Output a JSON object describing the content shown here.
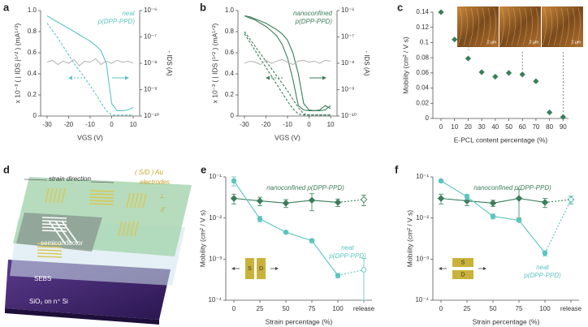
{
  "chart_data": [
    {
      "type": "line",
      "panel": "a",
      "x": [
        -30,
        -27.5,
        -25,
        -22.5,
        -20,
        -17.5,
        -15,
        -12.5,
        -10,
        -7.5,
        -5,
        -2.5,
        0,
        2.5,
        5,
        7.5,
        10
      ],
      "xlim": [
        -33,
        13
      ],
      "xticks": [
        -30,
        -20,
        -10,
        0,
        10
      ],
      "ylim": [
        0,
        1
      ],
      "yticks": [
        0,
        0.2,
        0.4,
        0.6,
        0.8,
        {
          "value": 1,
          "label": "1.0"
        }
      ],
      "y2log": true,
      "y2lim": [
        1e-10,
        1e-06
      ],
      "y2ticks": [
        {
          "value": 1e-10,
          "label": "10⁻¹⁰"
        },
        {
          "value": 1e-09,
          "label": "10⁻⁹"
        },
        {
          "value": 1e-08,
          "label": "10⁻⁸"
        },
        {
          "value": 1e-07,
          "label": "10⁻⁷"
        },
        {
          "value": 1e-06,
          "label": "10⁻⁶"
        }
      ],
      "xlabel": "VGS (V)",
      "ylabel": "x 10⁻³ ( | IDS |¹ᐟ² ) (mA¹ᐟ²)",
      "y2label": "- IDS (A)",
      "legend_text": [
        "neat",
        "p(DPP-PPD)"
      ],
      "legend_color": "#5cc4bf",
      "series": [
        {
          "color": "#5cc4bf",
          "axis": "y2",
          "values": [
            6.3e-07,
            4.8e-07,
            3.6e-07,
            2.8e-07,
            2.1e-07,
            1.6e-07,
            1.2e-07,
            9.1e-08,
            6.9e-08,
            4.8e-08,
            3e-08,
            1e-08,
            3e-10,
            1.6e-10,
            1.6e-10,
            1.7e-10,
            2.1e-10
          ]
        },
        {
          "color": "#5cc4bf",
          "dash": true,
          "values": [
            0.88,
            0.81,
            0.74,
            0.66,
            0.58,
            0.5,
            0.43,
            0.36,
            0.29,
            0.21,
            0.13,
            0.05,
            0.01,
            0.01,
            0.01,
            0.01,
            0.01
          ]
        },
        {
          "color": "#b8b8b8",
          "axis": "y2",
          "values": [
            1.1e-08,
            1.3e-08,
            9e-09,
            1.2e-08,
            1e-08,
            1.4e-08,
            8e-09,
            1.2e-08,
            1.1e-08,
            1.5e-08,
            9e-09,
            1.2e-08,
            1e-08,
            1.3e-08,
            1.1e-08,
            1.2e-08,
            1e-08
          ]
        }
      ]
    },
    {
      "type": "line",
      "panel": "b",
      "x": [
        -30,
        -27.5,
        -25,
        -22.5,
        -20,
        -17.5,
        -15,
        -12.5,
        -10,
        -7.5,
        -5,
        -2.5,
        0,
        2.5,
        5,
        7.5,
        10
      ],
      "xlim": [
        -33,
        13
      ],
      "xticks": [
        -30,
        -20,
        -10,
        0,
        10
      ],
      "ylim": [
        0,
        1
      ],
      "yticks": [
        0,
        0.2,
        0.4,
        0.6,
        0.8,
        {
          "value": 1,
          "label": "1.0"
        }
      ],
      "y2log": true,
      "y2lim": [
        1e-10,
        1e-06
      ],
      "y2ticks": [
        {
          "value": 1e-10,
          "label": "10⁻¹⁰"
        },
        {
          "value": 1e-09,
          "label": "10⁻⁹"
        },
        {
          "value": 1e-08,
          "label": "10⁻⁸"
        },
        {
          "value": 1e-07,
          "label": "10⁻⁷"
        },
        {
          "value": 1e-06,
          "label": "10⁻⁶"
        }
      ],
      "xlabel": "VGS (V)",
      "ylabel": "x 10⁻³ ( | IDS |¹ᐟ² ) (mA¹ᐟ²)",
      "y2label": "- IDS (A)",
      "legend_text": [
        "nanoconfined",
        "p(DPP-PPD)"
      ],
      "legend_color": "#3b7d5b",
      "series": [
        {
          "color": "#3b7d5b",
          "axis": "y2",
          "values": [
            6.3e-07,
            5.2e-07,
            4.4e-07,
            3.3e-07,
            2.5e-07,
            1.7e-07,
            1.1e-07,
            5.2e-08,
            1.6e-08,
            2.5e-09,
            2.5e-10,
            1.7e-10,
            1.6e-10,
            1.6e-10,
            1.7e-10,
            2.5e-10,
            1.9e-10
          ]
        },
        {
          "color": "#3b7d5b",
          "axis": "y2",
          "values": [
            6.3e-07,
            5.8e-07,
            4.8e-07,
            4e-07,
            3.3e-07,
            2.5e-07,
            1.9e-07,
            1.3e-07,
            7.6e-08,
            2.5e-08,
            4e-09,
            3e-10,
            1.7e-10,
            1.6e-10,
            1.6e-10,
            1.7e-10,
            2.5e-10
          ]
        },
        {
          "color": "#3b7d5b",
          "dash": true,
          "values": [
            0.78,
            0.7,
            0.62,
            0.54,
            0.46,
            0.38,
            0.3,
            0.22,
            0.14,
            0.07,
            0.02,
            0.01,
            0.01,
            0.01,
            0.01,
            0.01,
            0.01
          ]
        },
        {
          "color": "#3b7d5b",
          "dash": true,
          "values": [
            0.8,
            0.73,
            0.66,
            0.59,
            0.52,
            0.45,
            0.38,
            0.31,
            0.24,
            0.16,
            0.08,
            0.02,
            0.01,
            0.01,
            0.01,
            0.01,
            0.01
          ]
        },
        {
          "color": "#b8b8b8",
          "axis": "y2",
          "values": [
            1e-08,
            1.2e-08,
            1.1e-08,
            9e-09,
            1.3e-08,
            1e-08,
            1.2e-08,
            1.4e-08,
            1.1e-08,
            9e-09,
            1.2e-08,
            1.3e-08,
            1.1e-08,
            1.2e-08,
            1e-08,
            1.3e-08,
            1.2e-08
          ]
        }
      ]
    },
    {
      "type": "scatter",
      "panel": "c",
      "x": [
        0,
        10,
        20,
        30,
        40,
        50,
        60,
        70,
        80,
        90
      ],
      "values": [
        0.14,
        0.104,
        0.079,
        0.061,
        0.055,
        0.06,
        0.058,
        0.049,
        0.008,
        0.002
      ],
      "color": "#3b7d5b",
      "xlim": [
        -6,
        94
      ],
      "xticks": [
        0,
        10,
        20,
        30,
        40,
        50,
        60,
        70,
        80,
        90
      ],
      "ylim": [
        0,
        0.14
      ],
      "yticks": [
        0,
        0.02,
        0.04,
        0.06,
        0.08,
        0.1,
        0.12,
        0.14
      ],
      "xlabel": "E-PCL content percentage (%)",
      "ylabel": "Mobility (cm² / V s)",
      "inset_labels": [
        "2 μm",
        "2 μm",
        "2 μm"
      ]
    },
    {
      "type": "line",
      "panel": "e",
      "ylog": true,
      "categories": [
        "0",
        "25",
        "50",
        "75",
        "100",
        "release"
      ],
      "ylim": [
        0.0001,
        0.1
      ],
      "yticks": [
        {
          "value": 0.0001,
          "label": "10⁻⁴"
        },
        {
          "value": 0.001,
          "label": "10⁻³"
        },
        {
          "value": 0.01,
          "label": "10⁻²"
        },
        {
          "value": 0.1,
          "label": "10⁻¹"
        }
      ],
      "xlabel": "Strain percentage (%)",
      "ylabel": "Mobility (cm² / V s)",
      "annotations": [
        "nanoconfined p(DPP-PPD)",
        "neat",
        "p(DPP-PPD)"
      ],
      "inset_labels": [
        "S",
        "D"
      ],
      "series": [
        {
          "color": "#3b7d5b",
          "marker": "diamond",
          "dashed_last_segment": true,
          "open_last_marker": true,
          "values": [
            0.03,
            0.026,
            0.023,
            0.027,
            0.024,
            0.028
          ],
          "errors": [
            0.008,
            0.006,
            0.005,
            0.012,
            0.005,
            0.008
          ]
        },
        {
          "color": "#5cc4bf",
          "marker": "circle",
          "dashed_last_segment": true,
          "open_last_marker": true,
          "values": [
            0.08,
            0.0095,
            0.0045,
            0.0028,
            0.0004,
            0.00055
          ],
          "errors": [
            0.02,
            0.0015,
            0.0003,
            0.0003,
            5e-05,
            0.0005
          ]
        }
      ]
    },
    {
      "type": "line",
      "panel": "f",
      "ylog": true,
      "categories": [
        "0",
        "25",
        "50",
        "75",
        "100",
        "release"
      ],
      "ylim": [
        0.0001,
        0.1
      ],
      "yticks": [
        {
          "value": 0.0001,
          "label": "10⁻⁴"
        },
        {
          "value": 0.001,
          "label": "10⁻³"
        },
        {
          "value": 0.01,
          "label": "10⁻²"
        },
        {
          "value": 0.1,
          "label": "10⁻¹"
        }
      ],
      "xlabel": "Strain percentage (%)",
      "ylabel": "Mobility (cm² / V s)",
      "annotations": [
        "nanoconfined p(DPP-PPD)",
        "neat",
        "p(DPP-PPD)"
      ],
      "inset_labels": [
        "S",
        "D"
      ],
      "series": [
        {
          "color": "#3b7d5b",
          "marker": "diamond",
          "dashed_last_segment": true,
          "open_last_marker": true,
          "values": [
            0.03,
            0.026,
            0.023,
            0.03,
            0.024,
            0.028
          ],
          "errors": [
            0.008,
            0.006,
            0.004,
            0.02,
            0.006,
            0.006
          ]
        },
        {
          "color": "#5cc4bf",
          "marker": "circle",
          "dashed_last_segment": true,
          "open_last_marker": true,
          "values": [
            0.08,
            0.033,
            0.011,
            0.0088,
            0.0014,
            0.028
          ],
          "errors": [
            0.005,
            0.005,
            0.0015,
            0.0008,
            0.0002,
            0.006
          ]
        }
      ]
    }
  ],
  "diagram": {
    "panel": "d",
    "strain_direction": "strain direction",
    "electrodes": [
      "( S/D ) Au",
      "electrodes"
    ],
    "perpendicular": "⊥",
    "parallel": "//",
    "layers": [
      "semiconductor",
      "SEBS",
      "SiO₂ on n⁺ Si"
    ]
  }
}
